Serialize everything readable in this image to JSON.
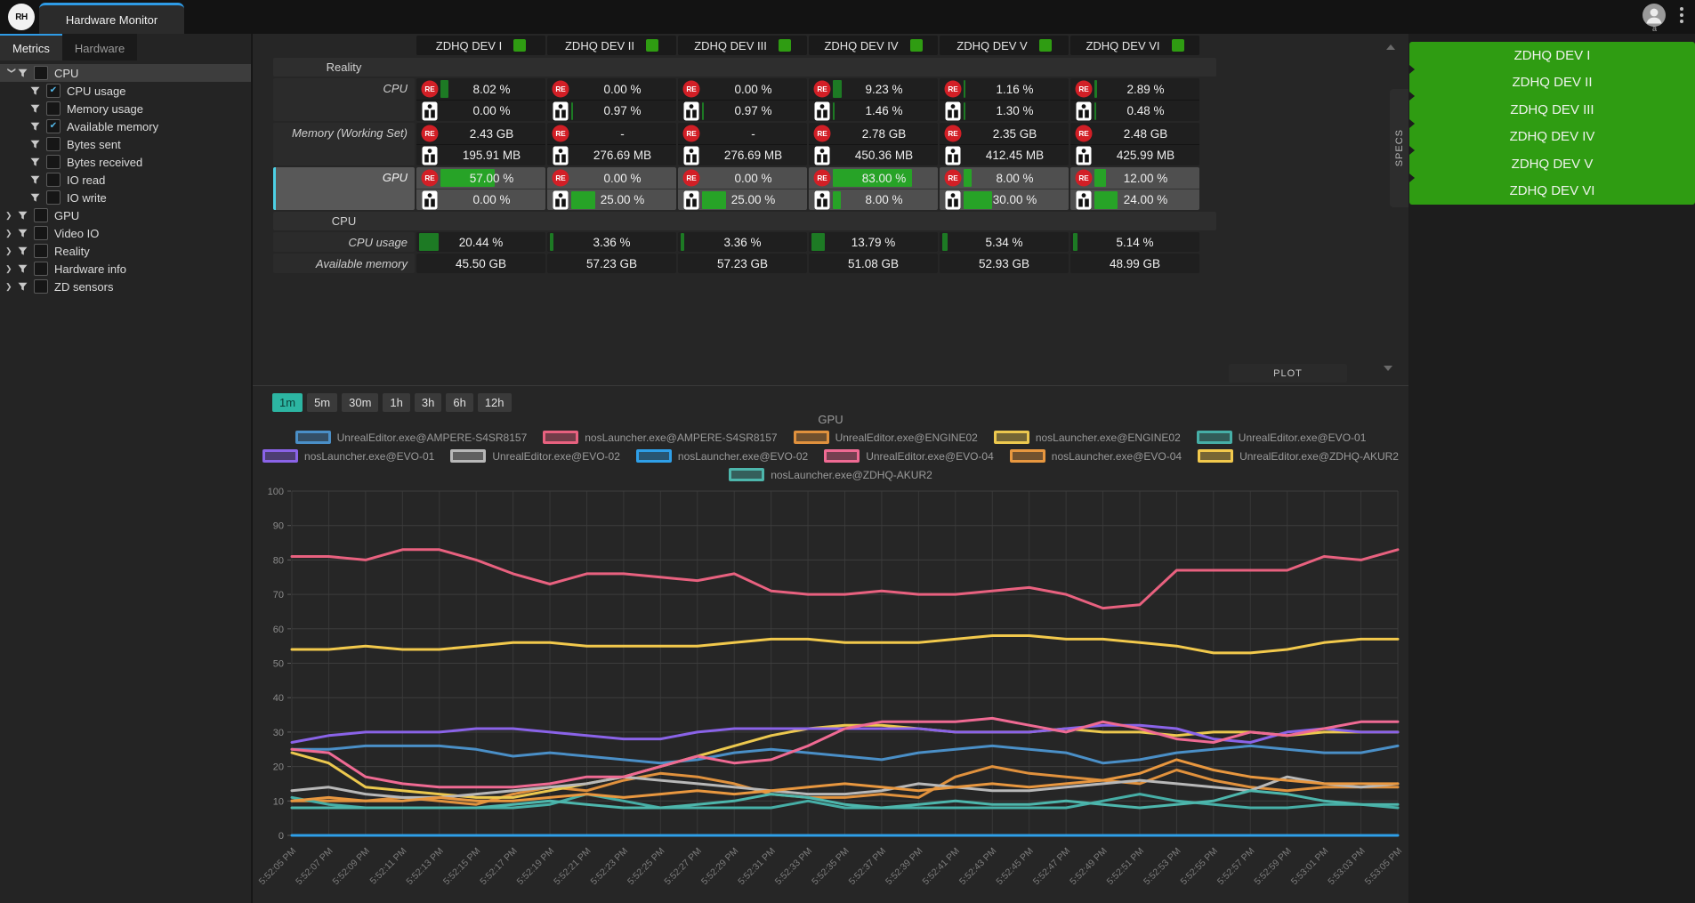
{
  "window": {
    "logo_text": "RH",
    "tab_title": "Hardware Monitor",
    "avatar_label": "a"
  },
  "colors": {
    "accent_blue": "#2e9be6",
    "selection_cyan": "#4dd0e5",
    "status_green": "#2f9c12",
    "bar_green_bright": "#27a327",
    "bar_green_dark": "#1d7a24",
    "re_red": "#d21f26",
    "active_range_teal": "#2cb5a2",
    "specs_panel_green": "#2f9c12"
  },
  "sidebar": {
    "tabs": [
      {
        "label": "Metrics",
        "active": true
      },
      {
        "label": "Hardware",
        "active": false
      }
    ],
    "tree": [
      {
        "label": "CPU",
        "level": 0,
        "expanded": true,
        "checked": false,
        "selected": true
      },
      {
        "label": "CPU usage",
        "level": 1,
        "checked": true
      },
      {
        "label": "Memory usage",
        "level": 1,
        "checked": false
      },
      {
        "label": "Available memory",
        "level": 1,
        "checked": true
      },
      {
        "label": "Bytes sent",
        "level": 1,
        "checked": false
      },
      {
        "label": "Bytes received",
        "level": 1,
        "checked": false
      },
      {
        "label": "IO read",
        "level": 1,
        "checked": false
      },
      {
        "label": "IO write",
        "level": 1,
        "checked": false
      },
      {
        "label": "GPU",
        "level": 0,
        "expanded": false,
        "checked": false
      },
      {
        "label": "Video IO",
        "level": 0,
        "expanded": false,
        "checked": false
      },
      {
        "label": "Reality",
        "level": 0,
        "expanded": false,
        "checked": false
      },
      {
        "label": "Hardware info",
        "level": 0,
        "expanded": false,
        "checked": false
      },
      {
        "label": "ZD sensors",
        "level": 0,
        "expanded": false,
        "checked": false
      }
    ]
  },
  "filter_tab": "FILTER",
  "specs_tab": "SPECS",
  "specs_panel": {
    "items": [
      "ZDHQ DEV I",
      "ZDHQ DEV II",
      "ZDHQ DEV III",
      "ZDHQ DEV IV",
      "ZDHQ DEV V",
      "ZDHQ DEV VI"
    ]
  },
  "monitor": {
    "devices": [
      "ZDHQ DEV I",
      "ZDHQ DEV II",
      "ZDHQ DEV III",
      "ZDHQ DEV IV",
      "ZDHQ DEV V",
      "ZDHQ DEV VI"
    ],
    "re_icon_text": "RE",
    "plot_button": "PLOT",
    "groups": [
      {
        "label": "Reality",
        "rows": [
          {
            "label": "CPU",
            "type": "dual",
            "selected": false,
            "re_values": [
              "8.02 %",
              "0.00 %",
              "0.00 %",
              "9.23 %",
              "1.16 %",
              "2.89 %"
            ],
            "re_bars": [
              8.02,
              0,
              0,
              9.23,
              1.16,
              2.89
            ],
            "host_values": [
              "0.00 %",
              "0.97 %",
              "0.97 %",
              "1.46 %",
              "1.30 %",
              "0.48 %"
            ],
            "host_bars": [
              0,
              0.97,
              0.97,
              1.46,
              1.3,
              0.48
            ]
          },
          {
            "label": "Memory (Working Set)",
            "type": "dual",
            "selected": false,
            "re_values": [
              "2.43 GB",
              "-",
              "-",
              "2.78 GB",
              "2.35 GB",
              "2.48 GB"
            ],
            "re_bars": [
              0,
              0,
              0,
              0,
              0,
              0
            ],
            "host_values": [
              "195.91 MB",
              "276.69 MB",
              "276.69 MB",
              "450.36 MB",
              "412.45 MB",
              "425.99 MB"
            ],
            "host_bars": [
              0,
              0,
              0,
              0,
              0,
              0
            ]
          },
          {
            "label": "GPU",
            "type": "dual",
            "selected": true,
            "re_values": [
              "57.00 %",
              "0.00 %",
              "0.00 %",
              "83.00 %",
              "8.00 %",
              "12.00 %"
            ],
            "re_bars": [
              57,
              0,
              0,
              83,
              8,
              12
            ],
            "host_values": [
              "0.00 %",
              "25.00 %",
              "25.00 %",
              "8.00 %",
              "30.00 %",
              "24.00 %"
            ],
            "host_bars": [
              0,
              25,
              25,
              8,
              30,
              24
            ]
          }
        ]
      },
      {
        "label": "CPU",
        "rows": [
          {
            "label": "CPU usage",
            "type": "single",
            "values": [
              "20.44 %",
              "3.36 %",
              "3.36 %",
              "13.79 %",
              "5.34 %",
              "5.14 %"
            ],
            "bars": [
              20.44,
              3.36,
              3.36,
              13.79,
              5.34,
              5.14
            ]
          },
          {
            "label": "Available memory",
            "type": "single",
            "values": [
              "45.50 GB",
              "57.23 GB",
              "57.23 GB",
              "51.08 GB",
              "52.93 GB",
              "48.99 GB"
            ],
            "bars": [
              0,
              0,
              0,
              0,
              0,
              0
            ]
          }
        ]
      }
    ]
  },
  "time_ranges": {
    "options": [
      "1m",
      "5m",
      "30m",
      "1h",
      "3h",
      "6h",
      "12h"
    ],
    "active": "1m"
  },
  "chart_data": {
    "type": "line",
    "title": "GPU",
    "ylim": [
      0,
      100
    ],
    "y_ticks": [
      0,
      10,
      20,
      30,
      40,
      50,
      60,
      70,
      80,
      90,
      100
    ],
    "grid": true,
    "legend_position": "top",
    "legend_rows": [
      5,
      6,
      1
    ],
    "x_labels": [
      "5:52:05 PM",
      "5:52:07 PM",
      "5:52:09 PM",
      "5:52:11 PM",
      "5:52:13 PM",
      "5:52:15 PM",
      "5:52:17 PM",
      "5:52:19 PM",
      "5:52:21 PM",
      "5:52:23 PM",
      "5:52:25 PM",
      "5:52:27 PM",
      "5:52:29 PM",
      "5:52:31 PM",
      "5:52:33 PM",
      "5:52:35 PM",
      "5:52:37 PM",
      "5:52:39 PM",
      "5:52:41 PM",
      "5:52:43 PM",
      "5:52:45 PM",
      "5:52:47 PM",
      "5:52:49 PM",
      "5:52:51 PM",
      "5:52:53 PM",
      "5:52:55 PM",
      "5:52:57 PM",
      "5:52:59 PM",
      "5:53:01 PM",
      "5:53:03 PM",
      "5:53:05 PM"
    ],
    "series": [
      {
        "name": "UnrealEditor.exe@AMPERE-S4SR8157",
        "color": "#4a8fc7",
        "values": [
          25,
          25,
          26,
          26,
          26,
          25,
          23,
          24,
          23,
          22,
          21,
          22,
          24,
          25,
          24,
          23,
          22,
          24,
          25,
          26,
          25,
          24,
          21,
          22,
          24,
          25,
          26,
          25,
          24,
          24,
          26
        ]
      },
      {
        "name": "nosLauncher.exe@AMPERE-S4SR8157",
        "color": "#e8617f",
        "values": [
          81,
          81,
          80,
          83,
          83,
          80,
          76,
          73,
          76,
          76,
          75,
          74,
          76,
          71,
          70,
          70,
          71,
          70,
          70,
          71,
          72,
          70,
          66,
          67,
          77,
          77,
          77,
          77,
          81,
          80,
          83
        ]
      },
      {
        "name": "UnrealEditor.exe@ENGINE02",
        "color": "#e0913d",
        "values": [
          10,
          10,
          10,
          11,
          10,
          9,
          12,
          14,
          13,
          16,
          18,
          17,
          15,
          12,
          11,
          11,
          12,
          11,
          17,
          20,
          18,
          17,
          16,
          15,
          19,
          16,
          14,
          13,
          14,
          14,
          14
        ]
      },
      {
        "name": "nosLauncher.exe@ENGINE02",
        "color": "#ecc84e",
        "values": [
          24,
          21,
          14,
          13,
          12,
          11,
          11,
          13,
          15,
          17,
          20,
          23,
          26,
          29,
          31,
          32,
          32,
          31,
          30,
          30,
          30,
          31,
          30,
          30,
          29,
          30,
          30,
          29,
          30,
          30,
          30
        ]
      },
      {
        "name": "UnrealEditor.exe@EVO-01",
        "color": "#46aea6",
        "values": [
          11,
          9,
          8,
          8,
          8,
          8,
          8,
          9,
          12,
          10,
          8,
          8,
          8,
          8,
          10,
          8,
          8,
          8,
          8,
          8,
          8,
          8,
          10,
          12,
          10,
          9,
          8,
          8,
          9,
          9,
          8
        ]
      },
      {
        "name": "nosLauncher.exe@EVO-01",
        "color": "#8a63e8",
        "values": [
          27,
          29,
          30,
          30,
          30,
          31,
          31,
          30,
          29,
          28,
          28,
          30,
          31,
          31,
          31,
          31,
          31,
          31,
          30,
          30,
          30,
          31,
          32,
          32,
          31,
          28,
          27,
          30,
          31,
          30,
          30
        ]
      },
      {
        "name": "UnrealEditor.exe@EVO-02",
        "color": "#b8b8b8",
        "values": [
          13,
          14,
          12,
          11,
          11,
          12,
          13,
          14,
          15,
          17,
          16,
          15,
          14,
          13,
          12,
          12,
          13,
          15,
          14,
          13,
          13,
          14,
          15,
          16,
          15,
          14,
          13,
          17,
          15,
          14,
          15
        ]
      },
      {
        "name": "nosLauncher.exe@EVO-02",
        "color": "#2e9fe8",
        "values": [
          0,
          0,
          0,
          0,
          0,
          0,
          0,
          0,
          0,
          0,
          0,
          0,
          0,
          0,
          0,
          0,
          0,
          0,
          0,
          0,
          0,
          0,
          0,
          0,
          0,
          0,
          0,
          0,
          0,
          0,
          0
        ]
      },
      {
        "name": "UnrealEditor.exe@EVO-04",
        "color": "#ef6a93",
        "values": [
          25,
          24,
          17,
          15,
          14,
          14,
          14,
          15,
          17,
          17,
          20,
          23,
          21,
          22,
          26,
          31,
          33,
          33,
          33,
          34,
          32,
          30,
          33,
          31,
          28,
          27,
          30,
          29,
          31,
          33,
          33
        ]
      },
      {
        "name": "nosLauncher.exe@EVO-04",
        "color": "#e8973f",
        "values": [
          10,
          11,
          10,
          10,
          11,
          10,
          10,
          11,
          12,
          11,
          12,
          13,
          12,
          13,
          14,
          15,
          14,
          13,
          14,
          15,
          14,
          15,
          16,
          18,
          22,
          19,
          17,
          16,
          15,
          15,
          15
        ]
      },
      {
        "name": "UnrealEditor.exe@ZDHQ-AKUR2",
        "color": "#f2c94c",
        "values": [
          54,
          54,
          55,
          54,
          54,
          55,
          56,
          56,
          55,
          55,
          55,
          55,
          56,
          57,
          57,
          56,
          56,
          56,
          57,
          58,
          58,
          57,
          57,
          56,
          55,
          53,
          53,
          54,
          56,
          57,
          57
        ]
      },
      {
        "name": "nosLauncher.exe@ZDHQ-AKUR2",
        "color": "#4db6ac",
        "values": [
          8,
          8,
          8,
          8,
          8,
          8,
          9,
          10,
          9,
          8,
          8,
          9,
          10,
          12,
          11,
          9,
          8,
          9,
          10,
          9,
          9,
          10,
          9,
          8,
          9,
          10,
          13,
          12,
          10,
          9,
          9
        ]
      }
    ]
  }
}
